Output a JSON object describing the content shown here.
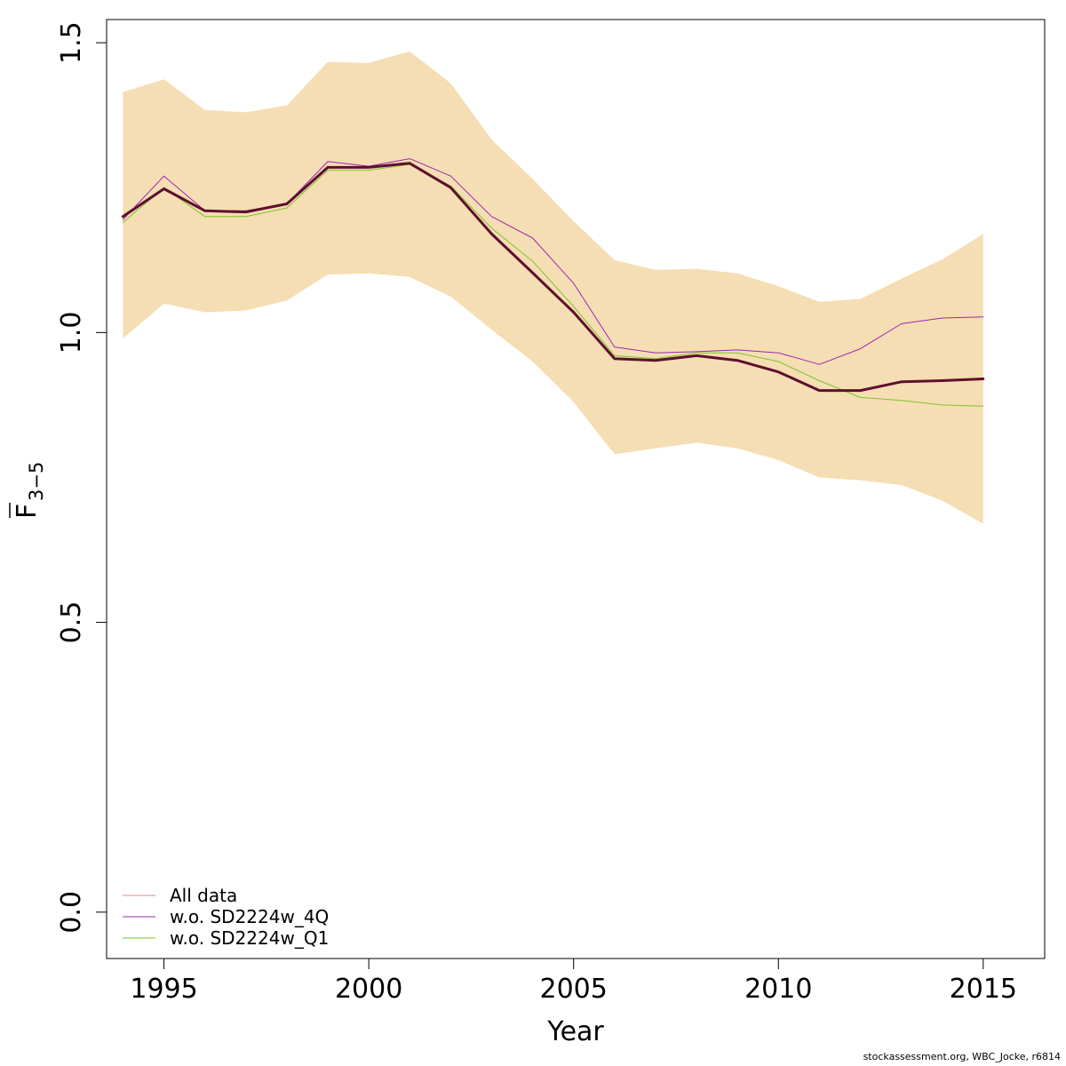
{
  "chart_data": {
    "type": "line",
    "xlabel": "Year",
    "ylabel_main": "F",
    "ylabel_sub": "3−5",
    "xlim": [
      1993.6,
      2016.5
    ],
    "ylim": [
      -0.08,
      1.54
    ],
    "x_ticks": [
      1995,
      2000,
      2005,
      2010,
      2015
    ],
    "x_tick_labels": [
      "1995",
      "2000",
      "2005",
      "2010",
      "2015"
    ],
    "y_ticks": [
      0.0,
      0.5,
      1.0,
      1.5
    ],
    "y_tick_labels": [
      "0.0",
      "0.5",
      "1.0",
      "1.5"
    ],
    "x": [
      1994,
      1995,
      1996,
      1997,
      1998,
      1999,
      2000,
      2001,
      2002,
      2003,
      2004,
      2005,
      2006,
      2007,
      2008,
      2009,
      2010,
      2011,
      2012,
      2013,
      2014,
      2015
    ],
    "band": {
      "color": "#F5DEB3",
      "upper": [
        1.415,
        1.437,
        1.384,
        1.38,
        1.392,
        1.467,
        1.465,
        1.485,
        1.43,
        1.333,
        1.265,
        1.192,
        1.125,
        1.108,
        1.11,
        1.102,
        1.08,
        1.053,
        1.058,
        1.093,
        1.126,
        1.17
      ],
      "lower": [
        0.99,
        1.05,
        1.035,
        1.038,
        1.055,
        1.1,
        1.102,
        1.096,
        1.062,
        1.005,
        0.95,
        0.88,
        0.79,
        0.8,
        0.81,
        0.8,
        0.78,
        0.75,
        0.745,
        0.737,
        0.71,
        0.67
      ]
    },
    "series": [
      {
        "name": "All data",
        "color": "#5E0F2E",
        "legend_color": "#E8848D",
        "width": 3,
        "values": [
          1.2,
          1.248,
          1.21,
          1.208,
          1.222,
          1.285,
          1.285,
          1.292,
          1.25,
          1.17,
          1.103,
          1.035,
          0.955,
          0.952,
          0.96,
          0.952,
          0.932,
          0.9,
          0.9,
          0.915,
          0.917,
          0.92
        ]
      },
      {
        "name": "w.o. SD2224w_4Q",
        "color": "#9C27B0",
        "legend_color": "#9C27B0",
        "width": 1,
        "values": [
          1.195,
          1.27,
          1.21,
          1.21,
          1.222,
          1.295,
          1.287,
          1.3,
          1.27,
          1.2,
          1.163,
          1.085,
          0.975,
          0.965,
          0.967,
          0.97,
          0.965,
          0.945,
          0.972,
          1.015,
          1.025,
          1.027
        ]
      },
      {
        "name": "w.o. SD2224w_Q1",
        "color": "#7BC52B",
        "legend_color": "#7BC52B",
        "width": 1,
        "values": [
          1.19,
          1.25,
          1.2,
          1.2,
          1.215,
          1.28,
          1.28,
          1.29,
          1.253,
          1.18,
          1.123,
          1.045,
          0.96,
          0.955,
          0.965,
          0.965,
          0.95,
          0.917,
          0.888,
          0.883,
          0.875,
          0.873
        ]
      }
    ],
    "legend_position": "bottom-left",
    "grid": false
  },
  "credit": "stockassessment.org, WBC_Jocke, r6814"
}
